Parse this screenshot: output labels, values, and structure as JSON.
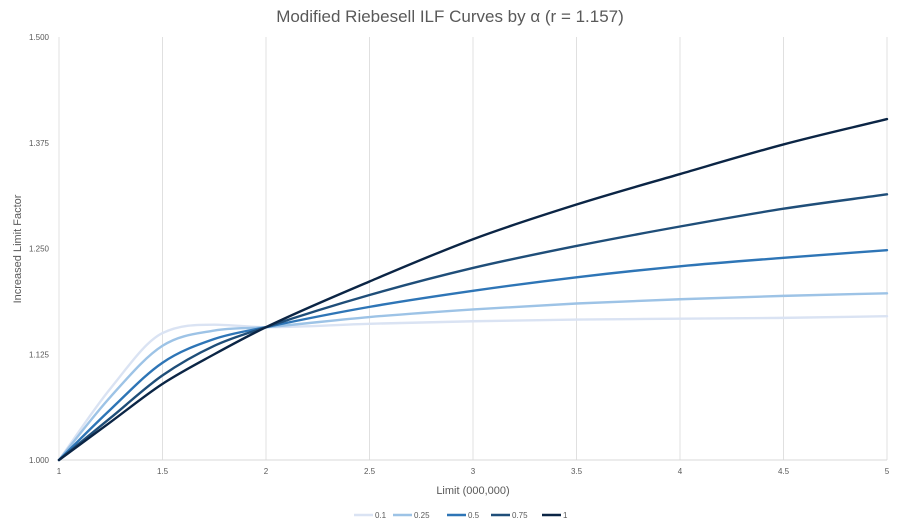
{
  "chart_data": {
    "type": "line",
    "title": "Modified Riebesell ILF Curves by α (r = 1.157)",
    "xlabel": "Limit (000,000)",
    "ylabel": "Increased Limit Factor",
    "xlim": [
      1,
      5
    ],
    "ylim": [
      1.0,
      1.5
    ],
    "x_ticks": [
      "1",
      "1.5",
      "2",
      "2.5",
      "3",
      "3.5",
      "4",
      "4.5",
      "5"
    ],
    "y_ticks": [
      "1.000",
      "1.125",
      "1.250",
      "1.375",
      "1.500"
    ],
    "grid": "vertical",
    "legend_position": "bottom",
    "x": [
      1.0,
      1.25,
      1.5,
      1.75,
      2.0,
      2.5,
      3.0,
      3.5,
      4.0,
      4.5,
      5.0
    ],
    "series": [
      {
        "name": "0.1",
        "color": "#dae3f3",
        "values": [
          1.0,
          1.085,
          1.15,
          1.16,
          1.157,
          1.161,
          1.164,
          1.166,
          1.167,
          1.168,
          1.17
        ]
      },
      {
        "name": "0.25",
        "color": "#9dc3e6",
        "values": [
          1.0,
          1.075,
          1.135,
          1.153,
          1.157,
          1.169,
          1.178,
          1.185,
          1.19,
          1.194,
          1.197
        ]
      },
      {
        "name": "0.5",
        "color": "#2e75b6",
        "values": [
          1.0,
          1.06,
          1.115,
          1.143,
          1.157,
          1.181,
          1.2,
          1.216,
          1.229,
          1.239,
          1.248
        ]
      },
      {
        "name": "0.75",
        "color": "#1f4e79",
        "values": [
          1.0,
          1.05,
          1.1,
          1.135,
          1.157,
          1.195,
          1.227,
          1.253,
          1.276,
          1.297,
          1.314
        ]
      },
      {
        "name": "1",
        "color": "#0b2545",
        "values": [
          1.0,
          1.045,
          1.09,
          1.125,
          1.157,
          1.211,
          1.261,
          1.302,
          1.338,
          1.373,
          1.403
        ]
      }
    ]
  }
}
